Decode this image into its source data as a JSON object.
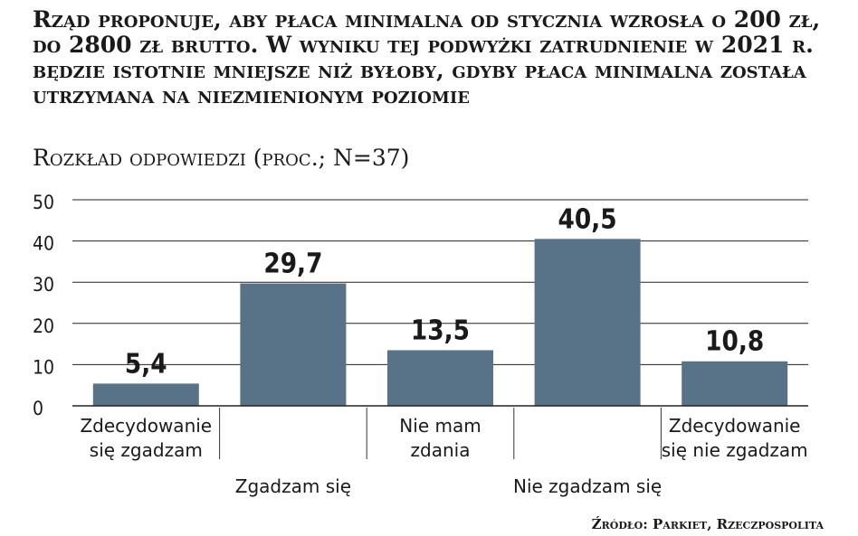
{
  "chart_data": {
    "type": "bar",
    "title": "Rząd proponuje, aby płaca minimalna od stycznia wzrosła o 200 zł, do 2800 zł brutto. W wyniku tej podwyżki zatrudnienie w 2021 r. będzie istotnie mniejsze niż byłoby, gdyby płaca minimalna została utrzymana na niezmienionym poziomie",
    "subtitle": "Rozkład odpowiedzi (proc.; N=37)",
    "categories": [
      [
        "Zdecydowanie",
        "się zgadzam"
      ],
      [
        "Zgadzam się"
      ],
      [
        "Nie mam",
        "zdania"
      ],
      [
        "Nie zgadzam się"
      ],
      [
        "Zdecydowanie",
        "się nie zgadzam"
      ]
    ],
    "values": [
      5.4,
      29.7,
      13.5,
      40.5,
      10.8
    ],
    "value_labels": [
      "5,4",
      "29,7",
      "13,5",
      "40,5",
      "10,8"
    ],
    "ylim": [
      0,
      50
    ],
    "yticks": [
      0,
      10,
      20,
      30,
      40,
      50
    ],
    "grid": true,
    "bar_color": "#587388",
    "source": "Źródło: Parkiet, Rzeczpospolita"
  }
}
